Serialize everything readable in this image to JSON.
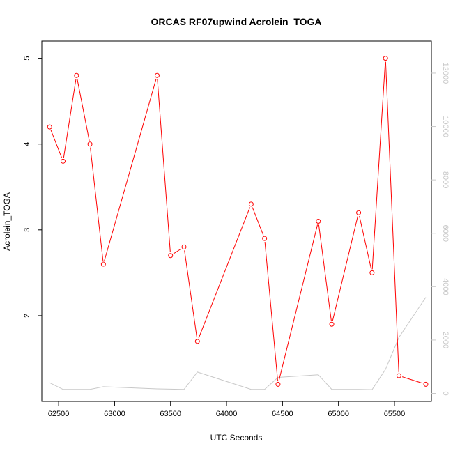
{
  "chart_data": {
    "type": "line",
    "title": "ORCAS RF07upwind Acrolein_TOGA",
    "xlabel": "UTC Seconds",
    "ylabel": "Acrolein_TOGA",
    "xlim": [
      62350,
      65830
    ],
    "ylim": [
      1.0,
      5.2
    ],
    "x_ticks": [
      62500,
      63000,
      63500,
      64000,
      64500,
      65000,
      65500
    ],
    "y_ticks": [
      2,
      3,
      4,
      5
    ],
    "y2lim": [
      -300,
      13200
    ],
    "y2_ticks": [
      0,
      2000,
      4000,
      6000,
      8000,
      10000,
      12000
    ],
    "series": [
      {
        "color": "#ff0000",
        "marker": "open-circle",
        "x": [
          62420,
          62540,
          62660,
          62780,
          62900,
          63380,
          63500,
          63620,
          63740,
          64220,
          64340,
          64460,
          64820,
          64940,
          65180,
          65300,
          65420,
          65540,
          65780
        ],
        "y": [
          4.2,
          3.8,
          4.8,
          4.0,
          2.6,
          4.8,
          2.7,
          2.8,
          1.7,
          3.3,
          2.9,
          1.2,
          3.1,
          1.9,
          3.2,
          2.5,
          5.0,
          1.3,
          1.2
        ]
      },
      {
        "color": "#c8c8c8",
        "axis": "right",
        "x": [
          62420,
          62540,
          62660,
          62780,
          62900,
          63380,
          63500,
          63620,
          63740,
          64220,
          64340,
          64460,
          64820,
          64940,
          65180,
          65300,
          65420,
          65540,
          65780
        ],
        "y": [
          400,
          150,
          150,
          150,
          250,
          170,
          160,
          150,
          800,
          150,
          150,
          600,
          700,
          150,
          150,
          140,
          900,
          2100,
          3600
        ]
      }
    ]
  }
}
